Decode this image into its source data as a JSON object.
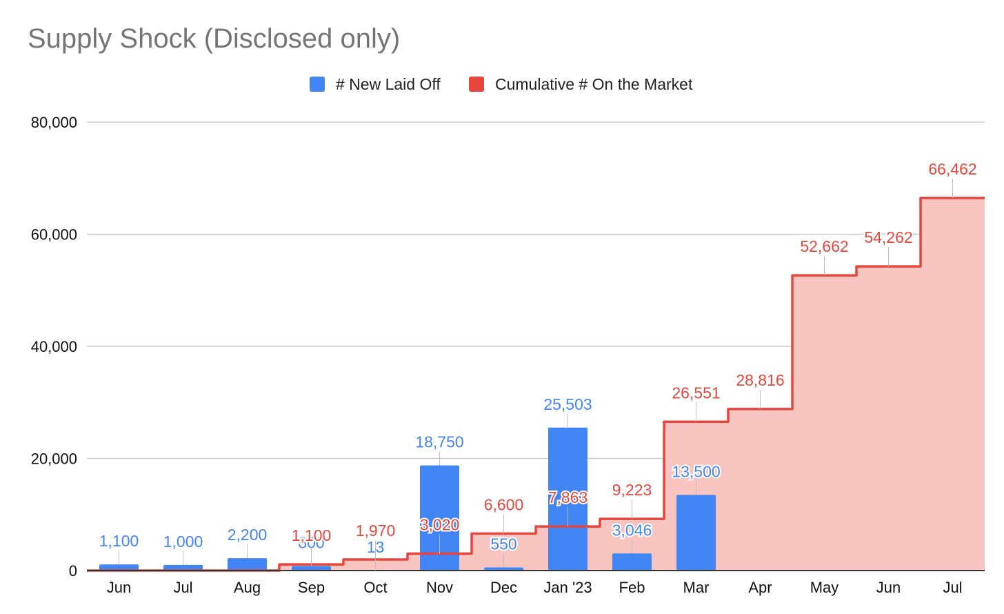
{
  "chart_data": {
    "type": "bar",
    "title": "Supply Shock (Disclosed only)",
    "xlabel": "",
    "ylabel": "",
    "ylim": [
      0,
      80000
    ],
    "yticks": [
      0,
      20000,
      40000,
      60000,
      80000
    ],
    "ytick_labels": [
      "0",
      "20,000",
      "40,000",
      "60,000",
      "80,000"
    ],
    "grid": true,
    "legend_position": "top",
    "categories": [
      "Jun",
      "Jul",
      "Aug",
      "Sep",
      "Oct",
      "Nov",
      "Dec",
      "Jan '23",
      "Feb",
      "Mar",
      "Apr",
      "May",
      "Jun",
      "Jul"
    ],
    "series": [
      {
        "name": "# New Laid Off",
        "type": "bar",
        "color": "#4285f4",
        "values": [
          1100,
          1000,
          2200,
          800,
          13,
          18750,
          550,
          25503,
          3046,
          13500,
          null,
          null,
          null,
          null
        ],
        "labels": [
          "1,100",
          "1,000",
          "2,200",
          "800",
          "13",
          "18,750",
          "550",
          "25,503",
          "3,046",
          "13,500",
          "",
          "",
          "",
          ""
        ]
      },
      {
        "name": "Cumulative # On the Market",
        "type": "stepped-area",
        "color": "#e8453c",
        "fill_color": "#f8c5c0",
        "values": [
          0,
          0,
          0,
          1100,
          1970,
          3020,
          6600,
          7863,
          9223,
          26551,
          28816,
          52662,
          54262,
          66462
        ],
        "labels": [
          "",
          "",
          "",
          "1,100",
          "1,970",
          "3,020",
          "6,600",
          "7,863",
          "9,223",
          "26,551",
          "28,816",
          "52,662",
          "54,262",
          "66,462"
        ]
      }
    ]
  }
}
